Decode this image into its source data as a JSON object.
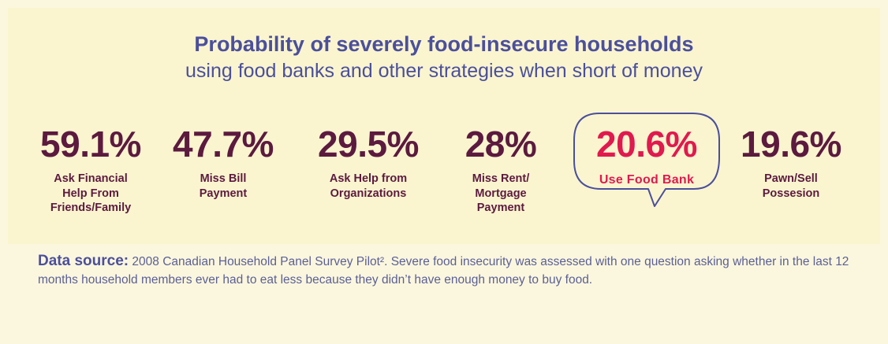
{
  "chart_data": {
    "type": "table",
    "title": "Probability of severely food-insecure households",
    "subtitle": "using food banks and other strategies when short of money",
    "items": [
      {
        "value": "59.1%",
        "label": "Ask Financial\nHelp From\nFriends/Family"
      },
      {
        "value": "47.7%",
        "label": "Miss Bill\nPayment"
      },
      {
        "value": "29.5%",
        "label": "Ask Help from\nOrganizations"
      },
      {
        "value": "28%",
        "label": "Miss Rent/\nMortgage\nPayment"
      },
      {
        "value": "20.6%",
        "label": "Use Food Bank",
        "highlighted": true
      },
      {
        "value": "19.6%",
        "label": "Pawn/Sell\nPossesion"
      }
    ]
  },
  "colors": {
    "title": "#4b4f9c",
    "value": "#5c1a3f",
    "highlight": "#e0194e",
    "bubble_stroke": "#4b4f9c",
    "background": "#faf5cf"
  },
  "footer": {
    "source_label": "Data source:",
    "source_text": " 2008 Canadian Household Panel Survey Pilot². Severe food insecurity was assessed with one question asking whether in the last 12 months household members ever had to eat less because they didn’t have enough money to buy food."
  }
}
